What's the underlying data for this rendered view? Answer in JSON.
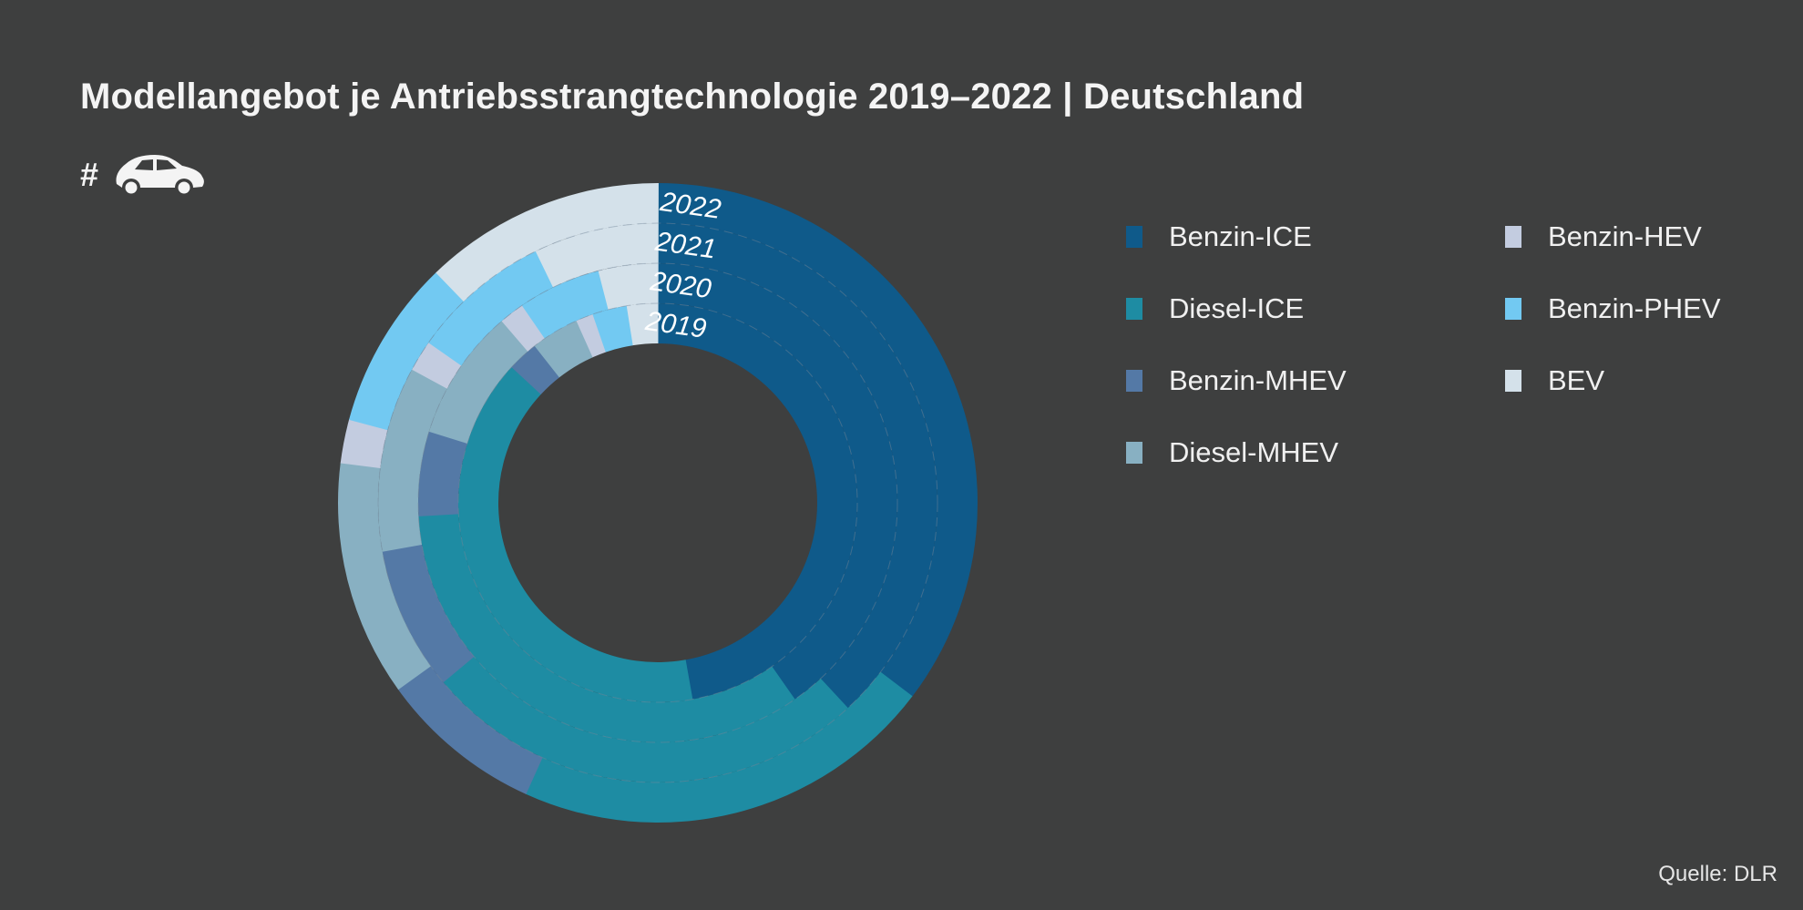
{
  "title": "Modellangebot je Antriebsstrangtechnologie 2019–2022 | Deutschland",
  "unit_label": "#",
  "unit_icon": "car-icon",
  "source": "Quelle: DLR",
  "background_color": "#3e3f3f",
  "legend": [
    {
      "label": "Benzin-ICE",
      "color": "#0f5a8a"
    },
    {
      "label": "Diesel-ICE",
      "color": "#1e8ca3"
    },
    {
      "label": "Benzin-MHEV",
      "color": "#5479a6"
    },
    {
      "label": "Diesel-MHEV",
      "color": "#88b0c2"
    },
    {
      "label": "Benzin-HEV",
      "color": "#c3cce0"
    },
    {
      "label": "Benzin-PHEV",
      "color": "#72c9f2"
    },
    {
      "label": "BEV",
      "color": "#d4e1ea"
    }
  ],
  "chart_data": {
    "type": "pie",
    "subtype": "multi-ring donut (inner ring = 2019, outer ring = 2022)",
    "title": "Modellangebot je Antriebsstrangtechnologie 2019–2022 | Deutschland",
    "unit": "share of model offering, % (estimated from slice angles)",
    "categories": [
      "Benzin-ICE",
      "Diesel-ICE",
      "Benzin-MHEV",
      "Diesel-MHEV",
      "Benzin-HEV",
      "Benzin-PHEV",
      "BEV"
    ],
    "series": [
      {
        "name": "2019",
        "values": [
          47.2,
          39.7,
          2.5,
          3.9,
          1.4,
          2.8,
          2.5
        ]
      },
      {
        "name": "2020",
        "values": [
          40.3,
          33.8,
          5.7,
          8.9,
          1.7,
          5.6,
          4.0
        ]
      },
      {
        "name": "2021",
        "values": [
          38.1,
          25.8,
          8.3,
          10.7,
          1.8,
          8.1,
          7.2
        ]
      },
      {
        "name": "2022",
        "values": [
          35.3,
          21.4,
          8.3,
          11.9,
          2.2,
          8.6,
          12.2
        ]
      }
    ],
    "ring_labels": [
      "2022",
      "2021",
      "2020",
      "2019"
    ],
    "legend_position": "right",
    "start_angle": "12 o'clock, clockwise"
  }
}
